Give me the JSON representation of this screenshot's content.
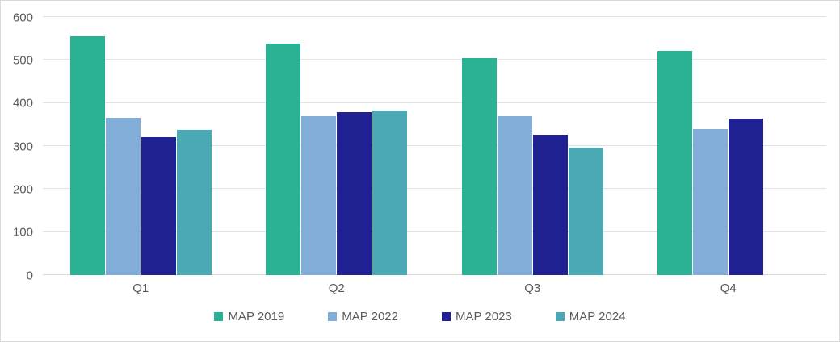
{
  "chart_data": {
    "type": "bar",
    "title": "",
    "xlabel": "",
    "ylabel": "",
    "categories": [
      "Q1",
      "Q2",
      "Q3",
      "Q4"
    ],
    "series": [
      {
        "name": "MAP 2019",
        "color": "#2BB194",
        "values": [
          555,
          539,
          505,
          522
        ]
      },
      {
        "name": "MAP 2022",
        "color": "#83ADD9",
        "values": [
          366,
          369,
          370,
          340
        ]
      },
      {
        "name": "MAP 2023",
        "color": "#1F2193",
        "values": [
          320,
          379,
          327,
          363
        ]
      },
      {
        "name": "MAP 2024",
        "color": "#4BA8B5",
        "values": [
          338,
          383,
          297,
          null
        ]
      }
    ],
    "ylim": [
      0,
      600
    ],
    "yticks": [
      0,
      100,
      200,
      300,
      400,
      500,
      600
    ],
    "grid": true,
    "legend_position": "bottom-center"
  },
  "style": {
    "tick_label_color": "#595959",
    "grid_color": "#E2E2E2",
    "axis_line_color": "#D6D6D6",
    "frame_border_color": "#D9D9D9",
    "background": "#FFFFFF"
  }
}
